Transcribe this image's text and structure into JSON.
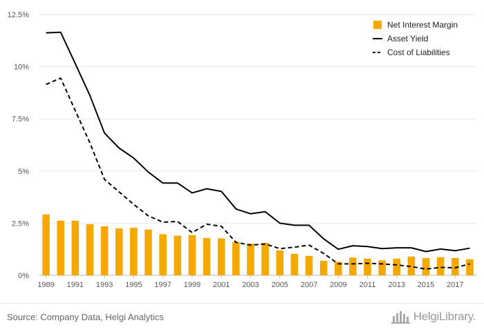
{
  "chart_data": {
    "type": "bar+line",
    "title": "",
    "xlabel": "",
    "ylabel": "",
    "ylim": [
      0,
      12.5
    ],
    "y_ticks": [
      "0%",
      "2.5%",
      "5%",
      "7.5%",
      "10%",
      "12.5%"
    ],
    "y_tick_values": [
      0,
      2.5,
      5,
      7.5,
      10,
      12.5
    ],
    "x_tick_labels": [
      "1989",
      "1991",
      "1993",
      "1995",
      "1997",
      "1999",
      "2001",
      "2003",
      "2005",
      "2007",
      "2009",
      "2011",
      "2013",
      "2015",
      "2017"
    ],
    "categories": [
      "1989",
      "1990",
      "1991",
      "1992",
      "1993",
      "1994",
      "1995",
      "1996",
      "1997",
      "1998",
      "1999",
      "2000",
      "2001",
      "2002",
      "2003",
      "2004",
      "2005",
      "2006",
      "2007",
      "2008",
      "2009",
      "2010",
      "2011",
      "2012",
      "2013",
      "2014",
      "2015",
      "2016",
      "2017",
      "2018"
    ],
    "grid": true,
    "legend_position": "top-right",
    "series": [
      {
        "name": "Net Interest Margin",
        "kind": "bar",
        "color": "#f5a800",
        "values": [
          2.92,
          2.62,
          2.62,
          2.45,
          2.35,
          2.25,
          2.28,
          2.19,
          1.97,
          1.9,
          1.93,
          1.79,
          1.77,
          1.6,
          1.52,
          1.55,
          1.2,
          1.03,
          0.93,
          0.7,
          0.65,
          0.85,
          0.8,
          0.72,
          0.8,
          0.9,
          0.83,
          0.87,
          0.83,
          0.77
        ]
      },
      {
        "name": "Asset Yield",
        "kind": "line",
        "style": "solid",
        "color": "#000000",
        "values": [
          11.62,
          11.65,
          10.15,
          8.62,
          6.82,
          6.1,
          5.62,
          4.95,
          4.42,
          4.42,
          3.95,
          4.15,
          4.02,
          3.18,
          2.95,
          3.05,
          2.5,
          2.4,
          2.4,
          1.75,
          1.25,
          1.42,
          1.38,
          1.28,
          1.32,
          1.32,
          1.14,
          1.26,
          1.18,
          1.3
        ]
      },
      {
        "name": "Cost of Liabilities",
        "kind": "line",
        "style": "dashed",
        "color": "#000000",
        "values": [
          9.15,
          9.45,
          7.9,
          6.35,
          4.6,
          4.0,
          3.4,
          2.85,
          2.55,
          2.58,
          2.05,
          2.45,
          2.35,
          1.58,
          1.45,
          1.5,
          1.28,
          1.35,
          1.45,
          1.05,
          0.55,
          0.55,
          0.58,
          0.55,
          0.5,
          0.42,
          0.3,
          0.38,
          0.36,
          0.55
        ]
      }
    ]
  },
  "footer": {
    "source": "Source: Company Data, Helgi Analytics",
    "brand": "HelgiLibrary."
  }
}
